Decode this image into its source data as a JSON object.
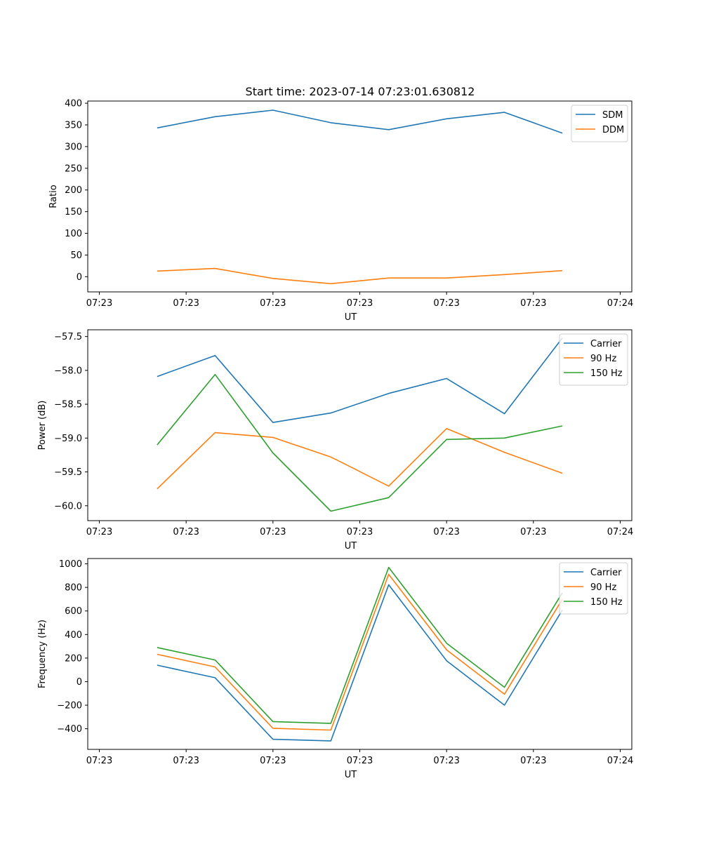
{
  "figure": {
    "title": "Start time: 2023-07-14 07:23:01.630812"
  },
  "chart_data": [
    {
      "type": "line",
      "title": "Start time: 2023-07-14 07:23:01.630812",
      "xlabel": "UT",
      "ylabel": "Ratio",
      "x": [
        0.5,
        1.0,
        1.5,
        2.0,
        2.5,
        3.0,
        3.5,
        4.0
      ],
      "xlim": [
        -0.1,
        4.6
      ],
      "xticks": [
        0,
        0.75,
        1.5,
        2.25,
        3.0,
        3.75,
        4.5
      ],
      "xtick_labels": [
        "07:23",
        "07:23",
        "07:23",
        "07:23",
        "07:23",
        "07:23",
        "07:24"
      ],
      "ylim": [
        -35,
        405
      ],
      "yticks": [
        0,
        50,
        100,
        150,
        200,
        250,
        300,
        350,
        400
      ],
      "ytick_labels": [
        "0",
        "50",
        "100",
        "150",
        "200",
        "250",
        "300",
        "350",
        "400"
      ],
      "legend": "top-right",
      "series": [
        {
          "name": "SDM",
          "color": "#1f77b4",
          "values": [
            343,
            369,
            384,
            355,
            339,
            364,
            379,
            331
          ]
        },
        {
          "name": "DDM",
          "color": "#ff7f0e",
          "values": [
            13,
            19,
            -4,
            -16,
            -3,
            -3,
            5,
            14
          ]
        }
      ]
    },
    {
      "type": "line",
      "title": "",
      "xlabel": "UT",
      "ylabel": "Power (dB)",
      "x": [
        0.5,
        1.0,
        1.5,
        2.0,
        2.5,
        3.0,
        3.5,
        4.0
      ],
      "xlim": [
        -0.1,
        4.6
      ],
      "xticks": [
        0,
        0.75,
        1.5,
        2.25,
        3.0,
        3.75,
        4.5
      ],
      "xtick_labels": [
        "07:23",
        "07:23",
        "07:23",
        "07:23",
        "07:23",
        "07:23",
        "07:24"
      ],
      "ylim": [
        -60.22,
        -57.4
      ],
      "yticks": [
        -60.0,
        -59.5,
        -59.0,
        -58.5,
        -58.0,
        -57.5
      ],
      "ytick_labels": [
        "−60.0",
        "−59.5",
        "−59.0",
        "−58.5",
        "−58.0",
        "−57.5"
      ],
      "legend": "top-right",
      "series": [
        {
          "name": "Carrier",
          "color": "#1f77b4",
          "values": [
            -58.09,
            -57.78,
            -58.77,
            -58.63,
            -58.34,
            -58.12,
            -58.64,
            -57.52
          ]
        },
        {
          "name": "90 Hz",
          "color": "#ff7f0e",
          "values": [
            -59.75,
            -58.92,
            -58.99,
            -59.28,
            -59.71,
            -58.86,
            -59.21,
            -59.52
          ]
        },
        {
          "name": "150 Hz",
          "color": "#2ca02c",
          "values": [
            -59.1,
            -58.06,
            -59.22,
            -60.08,
            -59.88,
            -59.02,
            -59.0,
            -58.82
          ]
        }
      ]
    },
    {
      "type": "line",
      "title": "",
      "xlabel": "UT",
      "ylabel": "Frequency (Hz)",
      "x": [
        0.5,
        1.0,
        1.5,
        2.0,
        2.5,
        3.0,
        3.5,
        4.0
      ],
      "xlim": [
        -0.1,
        4.6
      ],
      "xticks": [
        0,
        0.75,
        1.5,
        2.25,
        3.0,
        3.75,
        4.5
      ],
      "xtick_labels": [
        "07:23",
        "07:23",
        "07:23",
        "07:23",
        "07:23",
        "07:23",
        "07:24"
      ],
      "ylim": [
        -575,
        1045
      ],
      "yticks": [
        -400,
        -200,
        0,
        200,
        400,
        600,
        800,
        1000
      ],
      "ytick_labels": [
        "−400",
        "−200",
        "0",
        "200",
        "400",
        "600",
        "800",
        "1000"
      ],
      "legend": "top-right",
      "series": [
        {
          "name": "Carrier",
          "color": "#1f77b4",
          "values": [
            140,
            33,
            -489,
            -503,
            822,
            177,
            -200,
            608
          ]
        },
        {
          "name": "90 Hz",
          "color": "#ff7f0e",
          "values": [
            232,
            125,
            -396,
            -411,
            911,
            270,
            -107,
            700
          ]
        },
        {
          "name": "150 Hz",
          "color": "#2ca02c",
          "values": [
            290,
            184,
            -339,
            -354,
            970,
            326,
            -48,
            755
          ]
        }
      ]
    }
  ]
}
